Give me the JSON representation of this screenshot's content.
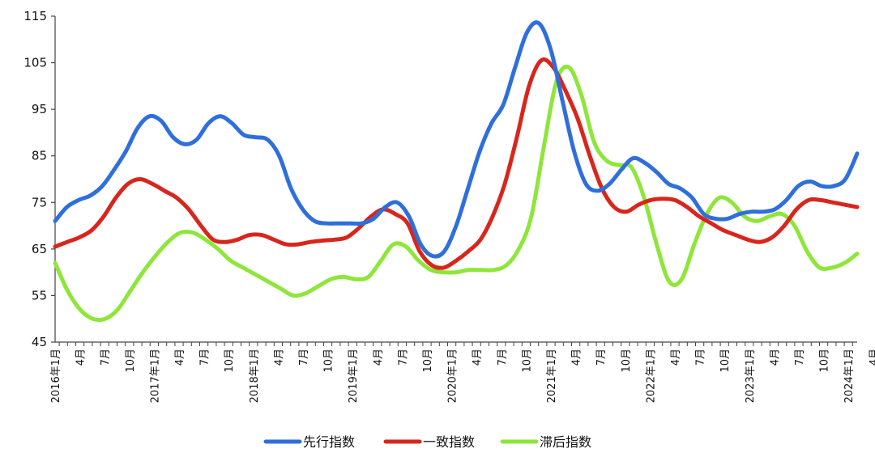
{
  "chart_data": {
    "type": "line",
    "title": "",
    "xlabel": "",
    "ylabel": "",
    "ylim": [
      45,
      115
    ],
    "yticks": [
      45,
      55,
      65,
      75,
      85,
      95,
      105,
      115
    ],
    "x_start": "2016-01",
    "x_end": "2024-05",
    "xtick_labels": [
      "2016年1月",
      "4月",
      "7月",
      "10月",
      "2017年1月",
      "4月",
      "7月",
      "10月",
      "2018年1月",
      "4月",
      "7月",
      "10月",
      "2019年1月",
      "4月",
      "7月",
      "10月",
      "2020年1月",
      "4月",
      "7月",
      "10月",
      "2021年1月",
      "4月",
      "7月",
      "10月",
      "2022年1月",
      "4月",
      "7月",
      "10月",
      "2023年1月",
      "4月",
      "7月",
      "10月",
      "2024年1月",
      "4月"
    ],
    "grid": false,
    "legend_position": "bottom",
    "series": [
      {
        "name": "先行指数",
        "color": "#2f6fdc",
        "values": [
          71.0,
          74.0,
          75.5,
          76.5,
          78.5,
          82.0,
          86.0,
          91.0,
          93.5,
          92.5,
          89.0,
          87.5,
          88.5,
          92.0,
          93.5,
          92.0,
          89.5,
          89.0,
          88.5,
          85.0,
          78.0,
          73.5,
          71.0,
          70.5,
          70.5,
          70.5,
          70.5,
          71.5,
          74.0,
          75.0,
          72.0,
          66.0,
          63.5,
          64.5,
          70.0,
          78.0,
          86.0,
          92.0,
          96.0,
          104.0,
          111.5,
          113.5,
          108.0,
          97.0,
          86.0,
          79.0,
          77.5,
          79.0,
          82.0,
          84.5,
          83.5,
          81.5,
          79.0,
          78.0,
          76.0,
          72.5,
          71.5,
          71.5,
          72.5,
          73.0,
          73.0,
          73.5,
          75.5,
          78.5,
          79.5,
          78.5,
          78.5,
          80.0,
          85.5
        ]
      },
      {
        "name": "一致指数",
        "color": "#d8261c",
        "values": [
          65.5,
          66.5,
          67.5,
          69.0,
          72.0,
          76.0,
          79.0,
          80.0,
          79.0,
          77.5,
          76.0,
          73.5,
          70.0,
          67.0,
          66.5,
          67.0,
          68.0,
          68.0,
          67.0,
          66.0,
          66.0,
          66.5,
          66.8,
          67.0,
          67.5,
          69.5,
          72.0,
          73.5,
          72.5,
          70.5,
          64.5,
          61.5,
          61.0,
          62.5,
          64.5,
          67.0,
          72.0,
          79.0,
          89.0,
          100.0,
          105.5,
          104.0,
          99.0,
          93.0,
          85.0,
          78.0,
          74.0,
          73.0,
          74.5,
          75.5,
          75.8,
          75.5,
          74.0,
          72.0,
          70.5,
          69.0,
          68.0,
          67.0,
          66.5,
          67.5,
          70.0,
          73.5,
          75.5,
          75.5,
          75.0,
          74.5,
          74.0
        ]
      },
      {
        "name": "滞后指数",
        "color": "#8ee63a",
        "values": [
          62.0,
          56.0,
          52.0,
          50.0,
          50.0,
          52.0,
          56.0,
          60.0,
          63.5,
          66.5,
          68.5,
          68.5,
          67.0,
          65.0,
          62.5,
          61.0,
          59.5,
          58.0,
          56.5,
          55.0,
          55.5,
          57.0,
          58.5,
          59.0,
          58.5,
          59.0,
          62.5,
          66.0,
          65.5,
          62.5,
          60.5,
          60.0,
          60.0,
          60.5,
          60.5,
          60.5,
          61.5,
          65.0,
          72.0,
          87.0,
          101.0,
          104.0,
          98.0,
          88.0,
          84.0,
          83.0,
          82.5,
          76.0,
          66.0,
          58.0,
          58.5,
          66.0,
          72.5,
          76.0,
          75.0,
          72.0,
          71.0,
          72.0,
          72.5,
          70.0,
          64.5,
          61.0,
          61.0,
          62.0,
          64.0
        ]
      }
    ]
  }
}
